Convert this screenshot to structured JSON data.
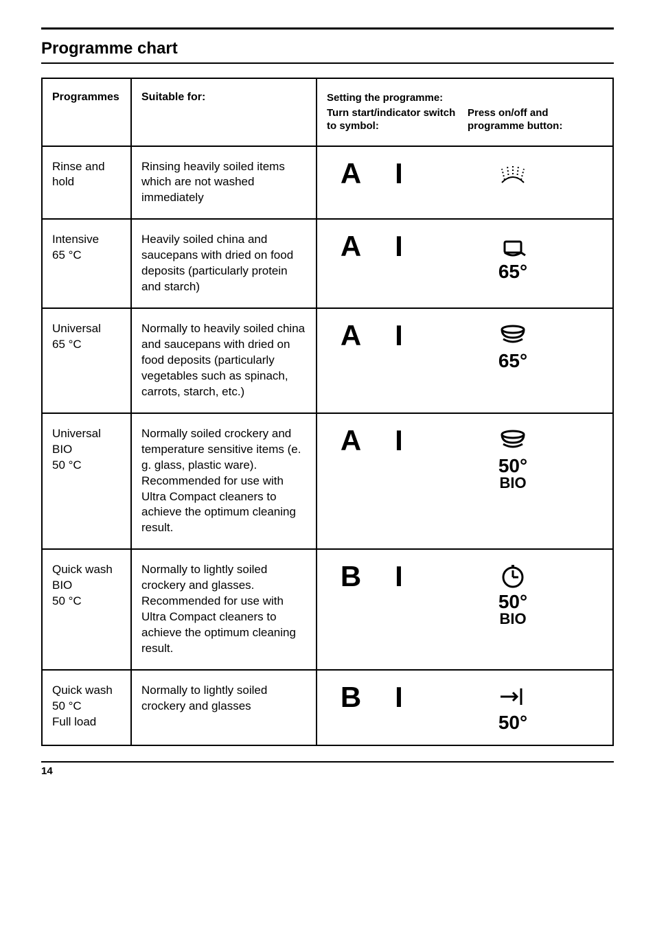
{
  "title": "Programme chart",
  "headers": {
    "programmes": "Programmes",
    "suitable": "Suitable for:",
    "setting_title": "Setting the programme:",
    "setting_left": "Turn start/indicator switch to symbol:",
    "setting_right": "Press on/off and programme button:"
  },
  "rows": [
    {
      "name": "Rinse and hold",
      "suitable": "Rinsing heavily soiled items which are not washed immediately",
      "letter": "A",
      "bar": "I",
      "icon": "shower",
      "temp": "",
      "bio": ""
    },
    {
      "name": "Intensive 65 °C",
      "suitable": "Heavily soiled china and saucepans with dried on food deposits (particularly protein and starch)",
      "letter": "A",
      "bar": "I",
      "icon": "pot",
      "temp": "65°",
      "bio": ""
    },
    {
      "name": "Universal 65 °C",
      "suitable": "Normally to heavily soiled china and saucepans with dried on food deposits (particularly vegetables such as spinach, carrots, starch, etc.)",
      "letter": "A",
      "bar": "I",
      "icon": "plates",
      "temp": "65°",
      "bio": ""
    },
    {
      "name": "Universal BIO 50 °C",
      "suitable": "Normally soiled crockery and temperature sensitive items (e. g. glass, plastic ware). Recommended for use with Ultra Compact cleaners to achieve the optimum cleaning result.",
      "letter": "A",
      "bar": "I",
      "icon": "plates",
      "temp": "50°",
      "bio": "BIO"
    },
    {
      "name": "Quick wash BIO 50 °C",
      "suitable": "Normally to lightly soiled crockery and glasses. Recommended for use with Ultra Compact cleaners to achieve the optimum cleaning result.",
      "letter": "B",
      "bar": "I",
      "icon": "clock",
      "temp": "50°",
      "bio": "BIO"
    },
    {
      "name": "Quick wash 50 °C Full load",
      "suitable": "Normally to lightly soiled crockery and glasses",
      "letter": "B",
      "bar": "I",
      "icon": "arrow-end",
      "temp": "50°",
      "bio": ""
    }
  ],
  "page_number": "14",
  "colors": {
    "fg": "#000000",
    "bg": "#ffffff"
  }
}
